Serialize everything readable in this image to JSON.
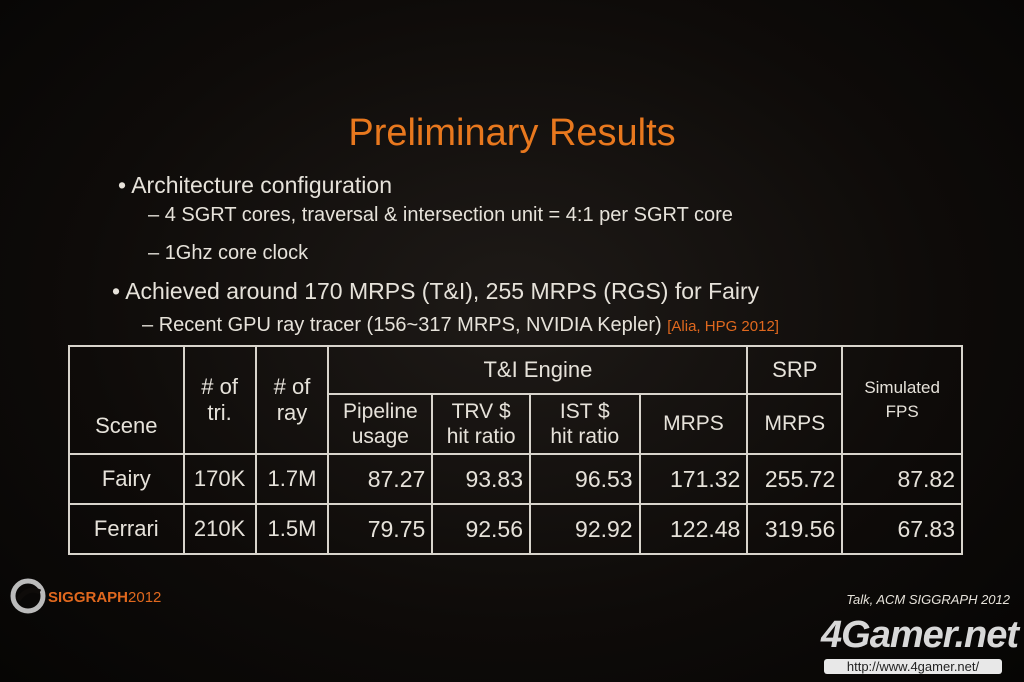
{
  "slide": {
    "title": "Preliminary Results",
    "bullets": [
      {
        "text": "Architecture configuration",
        "sub": [
          "4 SGRT cores, traversal & intersection unit = 4:1 per SGRT core",
          "1Ghz core clock"
        ]
      },
      {
        "text": "Achieved around 170 MRPS (T&I), 255 MRPS (RGS) for Fairy",
        "sub": [
          "Recent GPU ray tracer (156~317 MRPS, NVIDIA Kepler)"
        ],
        "citation": "[Alia, HPG 2012]"
      }
    ]
  },
  "table": {
    "header": {
      "scene": "Scene",
      "tri": [
        "# of",
        "tri."
      ],
      "ray": [
        "# of",
        "ray"
      ],
      "engine": "T&I Engine",
      "srp": "SRP",
      "fps": [
        "Simulated",
        "FPS"
      ],
      "sub": [
        [
          "Pipeline",
          "usage"
        ],
        [
          "TRV $",
          "hit ratio"
        ],
        [
          "IST $",
          "hit ratio"
        ],
        [
          "MRPS"
        ],
        [
          "MRPS"
        ]
      ]
    },
    "rows": [
      [
        "Fairy",
        "170K",
        "1.7M",
        87.27,
        93.83,
        96.53,
        171.32,
        255.72,
        87.82
      ],
      [
        "Ferrari",
        "210K",
        "1.5M",
        79.75,
        92.56,
        92.92,
        122.48,
        319.56,
        67.83
      ]
    ]
  },
  "footer": {
    "logo": "SIGGRAPH",
    "logo_year": "2012",
    "talk": "Talk, ACM SIGGRAPH 2012"
  },
  "watermark": {
    "brand": "4Gamer.net",
    "url": "http://www.4gamer.net/"
  }
}
